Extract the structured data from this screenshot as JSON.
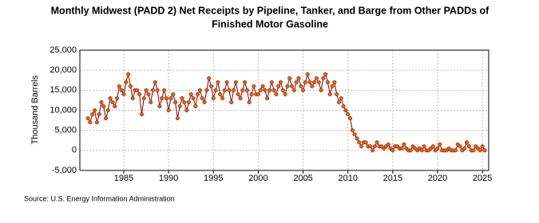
{
  "chart_data": {
    "type": "line",
    "title": "Monthly Midwest (PADD 2) Net Receipts by Pipeline, Tanker, and Barge from Other PADDs of",
    "subtitle": "Finished Motor Gasoline",
    "y_label": "Thousand Barrels",
    "source": "Source: U.S. Energy Information Administration",
    "xlim": [
      1980.1,
      2025.7
    ],
    "xticks": [
      1985,
      1990,
      1995,
      2000,
      2005,
      2010,
      2015,
      2020,
      2025
    ],
    "ylim": [
      -5000,
      25000
    ],
    "yticks": [
      {
        "value": -5000,
        "label": "-5,000"
      },
      0,
      {
        "value": 5000,
        "label": "5,000"
      },
      {
        "value": 10000,
        "label": "10,000"
      },
      {
        "value": 15000,
        "label": "15,000"
      },
      {
        "value": 20000,
        "label": "20,000"
      },
      {
        "value": 25000,
        "label": "25,000"
      }
    ],
    "grid": true,
    "x": [
      1981,
      1981.25,
      1981.5,
      1981.75,
      1982,
      1982.25,
      1982.5,
      1982.75,
      1983,
      1983.25,
      1983.5,
      1983.75,
      1984,
      1984.25,
      1984.5,
      1984.75,
      1985,
      1985.25,
      1985.5,
      1985.75,
      1986,
      1986.25,
      1986.5,
      1986.75,
      1987,
      1987.25,
      1987.5,
      1987.75,
      1988,
      1988.25,
      1988.5,
      1988.75,
      1989,
      1989.25,
      1989.5,
      1989.75,
      1990,
      1990.25,
      1990.5,
      1990.75,
      1991,
      1991.25,
      1991.5,
      1991.75,
      1992,
      1992.25,
      1992.5,
      1992.75,
      1993,
      1993.25,
      1993.5,
      1993.75,
      1994,
      1994.25,
      1994.5,
      1994.75,
      1995,
      1995.25,
      1995.5,
      1995.75,
      1996,
      1996.25,
      1996.5,
      1996.75,
      1997,
      1997.25,
      1997.5,
      1997.75,
      1998,
      1998.25,
      1998.5,
      1998.75,
      1999,
      1999.25,
      1999.5,
      1999.75,
      2000,
      2000.25,
      2000.5,
      2000.75,
      2001,
      2001.25,
      2001.5,
      2001.75,
      2002,
      2002.25,
      2002.5,
      2002.75,
      2003,
      2003.25,
      2003.5,
      2003.75,
      2004,
      2004.25,
      2004.5,
      2004.75,
      2005,
      2005.25,
      2005.5,
      2005.75,
      2006,
      2006.25,
      2006.5,
      2006.75,
      2007,
      2007.25,
      2007.5,
      2007.75,
      2008,
      2008.25,
      2008.5,
      2008.75,
      2009,
      2009.25,
      2009.5,
      2009.75,
      2010,
      2010.25,
      2010.5,
      2010.75,
      2011,
      2011.25,
      2011.5,
      2011.75,
      2012,
      2012.25,
      2012.5,
      2012.75,
      2013,
      2013.25,
      2013.5,
      2013.75,
      2014,
      2014.25,
      2014.5,
      2014.75,
      2015,
      2015.25,
      2015.5,
      2015.75,
      2016,
      2016.25,
      2016.5,
      2016.75,
      2017,
      2017.25,
      2017.5,
      2017.75,
      2018,
      2018.25,
      2018.5,
      2018.75,
      2019,
      2019.25,
      2019.5,
      2019.75,
      2020,
      2020.25,
      2020.5,
      2020.75,
      2021,
      2021.25,
      2021.5,
      2021.75,
      2022,
      2022.25,
      2022.5,
      2022.75,
      2023,
      2023.25,
      2023.5,
      2023.75,
      2024,
      2024.25,
      2024.5,
      2024.75,
      2025,
      2025.25
    ],
    "series": [
      {
        "color": "#d2691e",
        "line_color": "#8b0000",
        "values": [
          8000,
          7000,
          9000,
          10000,
          7000,
          9000,
          12000,
          11000,
          8000,
          10000,
          13000,
          12000,
          11000,
          13000,
          16000,
          15000,
          14000,
          17000,
          19000,
          16000,
          13000,
          15000,
          15000,
          14000,
          9000,
          13000,
          15000,
          14000,
          12000,
          15000,
          17000,
          15000,
          11000,
          13000,
          15000,
          13000,
          10000,
          13000,
          14000,
          12000,
          8000,
          11000,
          13000,
          12000,
          10000,
          12000,
          14000,
          13000,
          11000,
          14000,
          15000,
          13000,
          12000,
          15000,
          18000,
          16000,
          13000,
          15000,
          17000,
          14000,
          13000,
          15000,
          17000,
          15000,
          12000,
          15000,
          17000,
          14000,
          13000,
          15000,
          17000,
          15000,
          12000,
          14000,
          16000,
          14000,
          14000,
          15000,
          16000,
          15000,
          13000,
          15000,
          17000,
          15000,
          14000,
          16000,
          17000,
          15000,
          14000,
          16000,
          18000,
          16000,
          15000,
          17000,
          18000,
          16000,
          15000,
          17000,
          19000,
          17000,
          16000,
          17000,
          18000,
          17000,
          15000,
          18000,
          19000,
          17000,
          14000,
          16000,
          17000,
          14000,
          12000,
          13000,
          11000,
          10000,
          9000,
          8000,
          5000,
          4000,
          3000,
          2000,
          1000,
          2000,
          2000,
          1000,
          1000,
          0,
          1000,
          2000,
          1000,
          1000,
          500,
          1000,
          1500,
          500,
          0,
          1000,
          1000,
          500,
          500,
          1500,
          500,
          0,
          0,
          1000,
          500,
          0,
          500,
          0,
          1000,
          0,
          0,
          500,
          1000,
          0,
          500,
          1500,
          0,
          0,
          0,
          500,
          0,
          0,
          0,
          1500,
          1000,
          0,
          500,
          2000,
          1000,
          0,
          0,
          1000,
          500,
          0,
          1000,
          0
        ]
      }
    ]
  }
}
